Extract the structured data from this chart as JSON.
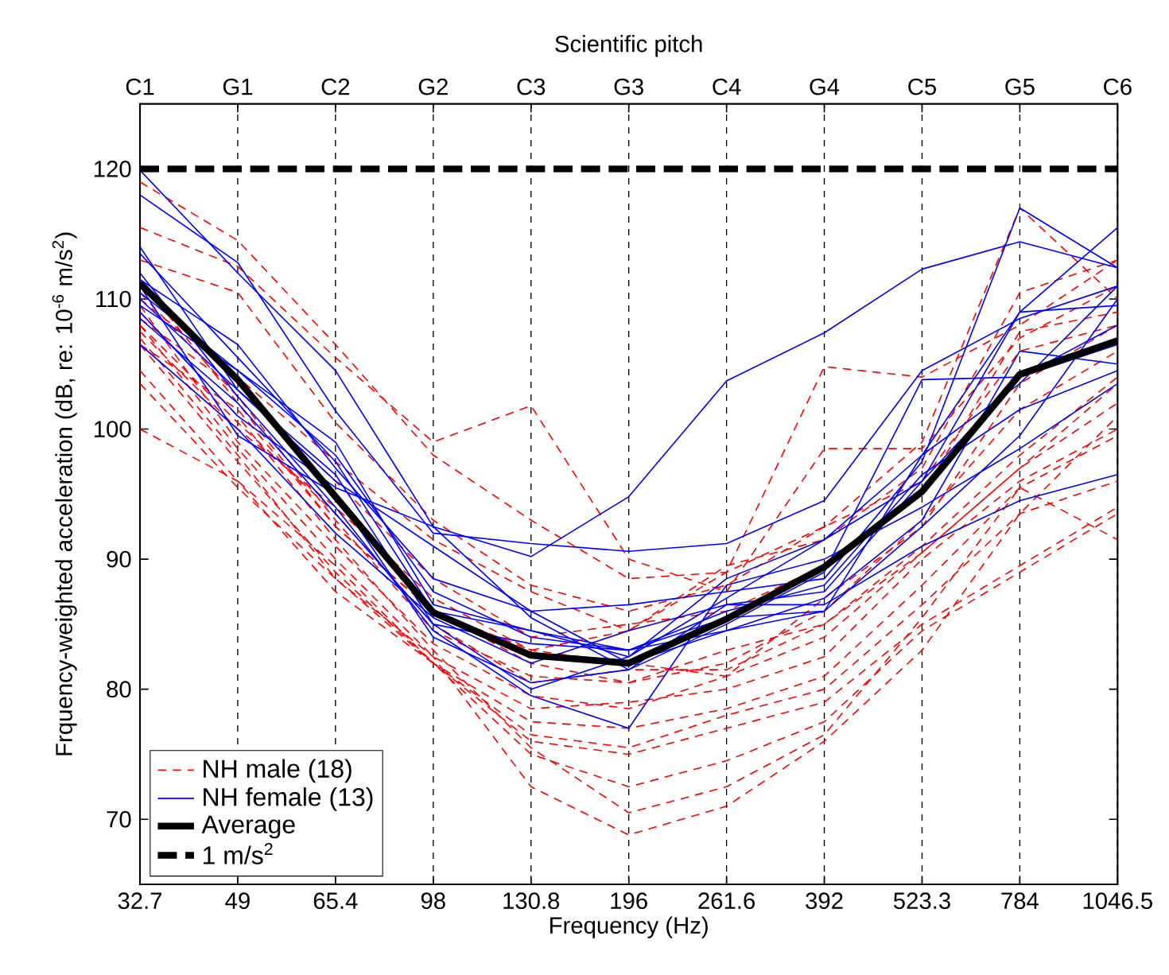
{
  "chart_data": {
    "type": "line",
    "title": "Scientific pitch",
    "xlabel": "Frequency (Hz)",
    "ylabel": "Frquency-weighted acceleration (dB, re: 10$^{-6}$ m/s$^{2}$)",
    "categories": [
      "32.7",
      "49",
      "65.4",
      "98",
      "130.8",
      "196",
      "261.6",
      "392",
      "523.3",
      "784",
      "1046.5"
    ],
    "annotations": [
      "C1",
      "G1",
      "C2",
      "G2",
      "C3",
      "G3",
      "C4",
      "G4",
      "C5",
      "G5",
      "C6"
    ],
    "ylim": [
      65,
      125
    ],
    "yticks": [
      70,
      80,
      90,
      100,
      110,
      120
    ],
    "grid": "x",
    "legend": "bottom left",
    "marker": "none",
    "series": [
      {
        "name": "NH male (18)",
        "color": "#ff0000",
        "line_style": "dashed",
        "values": [
          115.5,
          112.5,
          105.5,
          99.0,
          101.8,
          90.0,
          87.5,
          98.5,
          98.5,
          107.0,
          111.0
        ]
      },
      {
        "color": "#ff0000",
        "line_style": "dashed",
        "values": [
          119.0,
          114.5,
          106.5,
          98.0,
          93.0,
          88.5,
          89.0,
          104.8,
          104.0,
          108.0,
          113.0
        ]
      },
      {
        "color": "#ff0000",
        "line_style": "dashed",
        "values": [
          113.0,
          110.5,
          100.5,
          93.0,
          88.0,
          86.0,
          88.0,
          92.5,
          99.0,
          117.0,
          110.0
        ]
      },
      {
        "color": "#ff0000",
        "line_style": "dashed",
        "values": [
          110.0,
          104.0,
          97.5,
          91.5,
          87.5,
          84.5,
          89.5,
          91.5,
          97.0,
          110.5,
          113.0
        ]
      },
      {
        "color": "#ff0000",
        "line_style": "dashed",
        "values": [
          108.5,
          103.0,
          96.0,
          88.5,
          84.0,
          85.0,
          86.0,
          89.5,
          95.0,
          107.5,
          109.0
        ]
      },
      {
        "color": "#ff0000",
        "line_style": "dashed",
        "values": [
          107.5,
          100.0,
          94.0,
          87.0,
          83.0,
          82.0,
          81.0,
          87.0,
          92.5,
          103.5,
          108.0
        ]
      },
      {
        "color": "#ff0000",
        "line_style": "dashed",
        "values": [
          106.5,
          101.5,
          92.5,
          86.0,
          82.0,
          80.5,
          82.0,
          86.0,
          93.0,
          101.5,
          106.0
        ]
      },
      {
        "color": "#ff0000",
        "line_style": "dashed",
        "values": [
          110.5,
          102.5,
          93.0,
          84.5,
          81.0,
          80.5,
          83.0,
          85.0,
          91.0,
          98.0,
          104.0
        ]
      },
      {
        "color": "#ff0000",
        "line_style": "dashed",
        "values": [
          109.5,
          99.0,
          91.0,
          83.5,
          79.5,
          78.5,
          81.0,
          84.0,
          90.5,
          97.0,
          102.0
        ]
      },
      {
        "color": "#ff0000",
        "line_style": "dashed",
        "values": [
          108.0,
          98.5,
          90.0,
          82.5,
          78.5,
          79.0,
          80.0,
          82.5,
          90.0,
          96.0,
          100.0
        ]
      },
      {
        "color": "#ff0000",
        "line_style": "dashed",
        "values": [
          106.5,
          97.5,
          89.0,
          82.0,
          77.5,
          77.0,
          78.5,
          81.0,
          88.0,
          95.5,
          99.5
        ]
      },
      {
        "color": "#ff0000",
        "line_style": "dashed",
        "values": [
          104.5,
          96.0,
          89.5,
          82.0,
          76.5,
          75.5,
          78.0,
          80.0,
          86.5,
          93.5,
          96.0
        ]
      },
      {
        "color": "#ff0000",
        "line_style": "dashed",
        "values": [
          103.5,
          95.5,
          88.5,
          82.0,
          76.0,
          75.0,
          77.0,
          79.0,
          85.0,
          89.5,
          94.0
        ]
      },
      {
        "color": "#ff0000",
        "line_style": "dashed",
        "values": [
          100.0,
          96.0,
          87.5,
          82.0,
          75.0,
          72.5,
          74.5,
          77.5,
          84.5,
          89.0,
          93.5
        ]
      },
      {
        "color": "#ff0000",
        "line_style": "dashed",
        "values": [
          109.0,
          101.0,
          91.5,
          83.0,
          75.5,
          70.5,
          72.5,
          76.5,
          85.5,
          95.5,
          91.5
        ]
      },
      {
        "color": "#ff0000",
        "line_style": "dashed",
        "values": [
          107.0,
          98.0,
          88.5,
          82.5,
          72.5,
          68.8,
          71.0,
          76.0,
          83.0,
          93.5,
          101.0
        ]
      },
      {
        "color": "#ff0000",
        "line_style": "dashed",
        "values": [
          111.5,
          102.0,
          92.5,
          86.0,
          83.0,
          84.5,
          89.0,
          92.5,
          96.0,
          106.0,
          108.0
        ]
      },
      {
        "color": "#ff0000",
        "line_style": "dashed",
        "values": [
          108.0,
          100.5,
          93.5,
          85.0,
          80.5,
          81.5,
          81.5,
          85.0,
          90.5,
          97.0,
          103.5
        ]
      },
      {
        "name": "NH female (13)",
        "color": "#0000ff",
        "line_style": "solid",
        "values": [
          119.9,
          112.0,
          104.5,
          92.5,
          90.2,
          94.8,
          103.7,
          107.4,
          112.3,
          114.4,
          112.4
        ]
      },
      {
        "color": "#0000ff",
        "line_style": "solid",
        "values": [
          118.0,
          112.8,
          101.4,
          92.0,
          91.2,
          90.6,
          91.2,
          94.5,
          104.5,
          108.5,
          111.0
        ]
      },
      {
        "color": "#0000ff",
        "line_style": "solid",
        "values": [
          111.5,
          106.5,
          97.0,
          88.5,
          86.0,
          86.5,
          87.5,
          88.5,
          97.5,
          117.0,
          112.4
        ]
      },
      {
        "color": "#0000ff",
        "line_style": "solid",
        "values": [
          110.5,
          104.5,
          99.0,
          86.5,
          84.5,
          82.5,
          87.0,
          91.5,
          98.0,
          109.0,
          115.5
        ]
      },
      {
        "color": "#0000ff",
        "line_style": "solid",
        "values": [
          114.0,
          103.0,
          96.5,
          85.0,
          80.0,
          82.5,
          88.5,
          91.5,
          96.0,
          109.0,
          109.5
        ]
      },
      {
        "color": "#0000ff",
        "line_style": "solid",
        "values": [
          108.5,
          102.0,
          93.5,
          85.0,
          83.5,
          83.0,
          84.5,
          87.0,
          93.0,
          106.0,
          105.0
        ]
      },
      {
        "color": "#0000ff",
        "line_style": "solid",
        "values": [
          111.0,
          99.5,
          95.0,
          84.0,
          80.5,
          81.5,
          86.5,
          87.5,
          96.0,
          104.0,
          106.5
        ]
      },
      {
        "color": "#0000ff",
        "line_style": "solid",
        "values": [
          109.5,
          104.5,
          98.0,
          87.5,
          84.0,
          83.0,
          86.0,
          88.0,
          96.5,
          101.5,
          104.5
        ]
      },
      {
        "color": "#0000ff",
        "line_style": "solid",
        "values": [
          112.0,
          102.5,
          94.0,
          84.5,
          79.5,
          77.0,
          88.0,
          90.0,
          94.0,
          98.5,
          103.5
        ]
      },
      {
        "color": "#0000ff",
        "line_style": "solid",
        "values": [
          106.5,
          100.0,
          92.0,
          85.5,
          82.0,
          84.5,
          86.5,
          86.5,
          91.0,
          94.5,
          96.5
        ]
      },
      {
        "color": "#0000ff",
        "line_style": "solid",
        "values": [
          109.0,
          101.0,
          95.5,
          92.5,
          85.5,
          81.5,
          85.0,
          89.0,
          103.8,
          104.0,
          108.0
        ]
      },
      {
        "color": "#0000ff",
        "line_style": "solid",
        "values": [
          110.0,
          103.0,
          96.0,
          91.0,
          86.0,
          82.0,
          84.5,
          86.0,
          92.5,
          99.5,
          110.0
        ]
      },
      {
        "color": "#0000ff",
        "line_style": "solid",
        "values": [
          113.5,
          105.5,
          97.5,
          86.0,
          84.5,
          83.0,
          85.5,
          86.0,
          98.0,
          103.5,
          111.0
        ]
      },
      {
        "name": "Average",
        "color": "#000000",
        "line_style": "solid",
        "values": [
          111.2,
          103.8,
          94.8,
          85.9,
          82.6,
          82.0,
          85.4,
          89.4,
          95.2,
          104.2,
          106.8
        ]
      },
      {
        "name": "1 m/s$^{2}$",
        "color": "#000000",
        "line_style": "dashed",
        "values": [
          120,
          120,
          120,
          120,
          120,
          120,
          120,
          120,
          120,
          120,
          120
        ]
      }
    ]
  }
}
